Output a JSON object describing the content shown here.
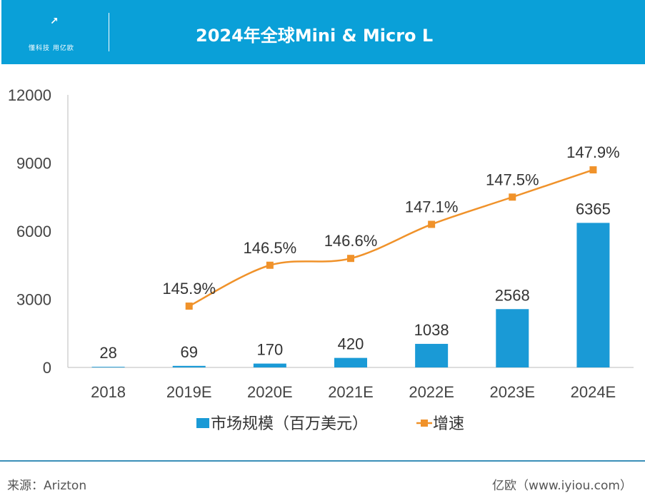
{
  "header": {
    "logo_text": "懂科技 用亿欧",
    "title": "2024年全球Mini & Micro L"
  },
  "chart_data": {
    "type": "bar+line",
    "categories": [
      "2018",
      "2019E",
      "2020E",
      "2021E",
      "2022E",
      "2023E",
      "2024E"
    ],
    "yticks": [
      "0",
      "3000",
      "6000",
      "9000",
      "12000"
    ],
    "ylim": [
      0,
      12000
    ],
    "series": [
      {
        "name": "市场规模（百万美元）",
        "type": "bar",
        "color": "#1a9ad6",
        "values": [
          28,
          69,
          170,
          420,
          1038,
          2568,
          6365
        ],
        "labels": [
          "28",
          "69",
          "170",
          "420",
          "1038",
          "2568",
          "6365"
        ]
      },
      {
        "name": "增速",
        "type": "line",
        "color": "#f0922a",
        "values": [
          null,
          145.9,
          146.5,
          146.6,
          147.1,
          147.5,
          147.9
        ],
        "labels": [
          "",
          "145.9%",
          "146.5%",
          "146.6%",
          "147.1%",
          "147.5%",
          "147.9%"
        ],
        "ylim": [
          145.0,
          149.0
        ]
      }
    ],
    "legend": "bottom",
    "grid": false
  },
  "footer": {
    "source": "来源：Arizton",
    "site": "亿欧（www.iyiou.com）"
  }
}
